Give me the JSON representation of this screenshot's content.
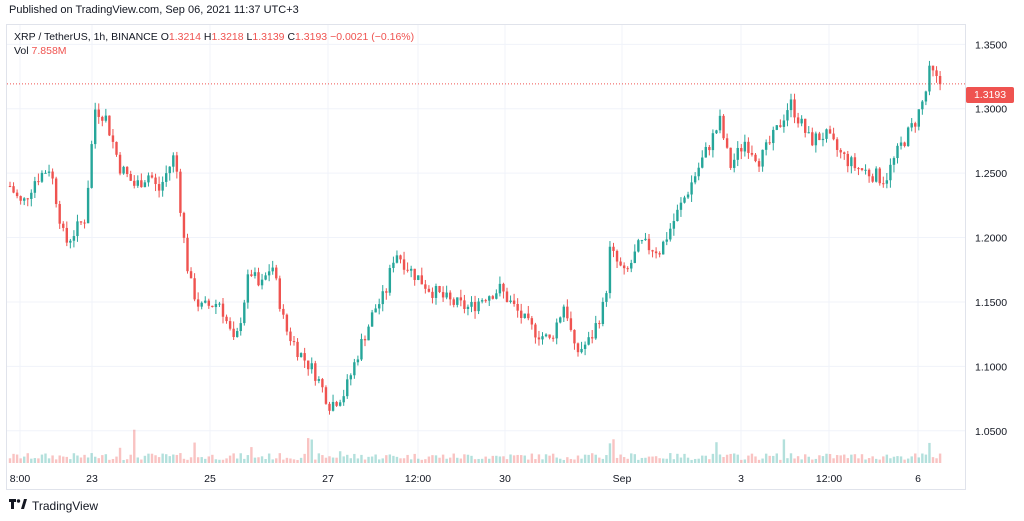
{
  "header": {
    "published": "Published on TradingView.com, Sep 06, 2021 11:37 UTC+3"
  },
  "legend": {
    "symbol": "XRP / TetherUS, 1h, BINANCE",
    "o_label": "O",
    "o_value": "1.3214",
    "h_label": "H",
    "h_value": "1.3218",
    "l_label": "L",
    "l_value": "1.3139",
    "c_label": "C",
    "c_value": "1.3193",
    "change": "−0.0021 (−0.16%)",
    "vol_label": "Vol",
    "vol_value": "7.858M"
  },
  "price_tag": "1.3193",
  "brand": {
    "name": "TradingView"
  },
  "colors": {
    "up": "#26a69a",
    "down": "#ef5350",
    "grid": "#f0f3fa"
  },
  "chart_data": {
    "type": "candlestick",
    "interval": "1h",
    "last_price": 1.3193,
    "ylim": [
      1.025,
      1.365
    ],
    "y_ticks": [
      "1.3500",
      "1.3000",
      "1.2500",
      "1.2000",
      "1.1500",
      "1.1000",
      "1.0500"
    ],
    "x_ticks": [
      "8:00",
      "23",
      "25",
      "27",
      "12:00",
      "30",
      "Sep",
      "3",
      "12:00",
      "6"
    ],
    "close_path": [
      [
        0,
        1.24
      ],
      [
        12,
        1.225
      ],
      [
        25,
        1.245
      ],
      [
        40,
        1.255
      ],
      [
        55,
        1.195
      ],
      [
        75,
        1.215
      ],
      [
        85,
        1.3
      ],
      [
        95,
        1.295
      ],
      [
        110,
        1.255
      ],
      [
        125,
        1.24
      ],
      [
        140,
        1.25
      ],
      [
        148,
        1.235
      ],
      [
        165,
        1.265
      ],
      [
        175,
        1.19
      ],
      [
        180,
        1.165
      ],
      [
        190,
        1.145
      ],
      [
        210,
        1.15
      ],
      [
        225,
        1.115
      ],
      [
        240,
        1.175
      ],
      [
        250,
        1.16
      ],
      [
        262,
        1.18
      ],
      [
        275,
        1.13
      ],
      [
        290,
        1.11
      ],
      [
        305,
        1.095
      ],
      [
        320,
        1.07
      ],
      [
        335,
        1.08
      ],
      [
        350,
        1.115
      ],
      [
        365,
        1.145
      ],
      [
        375,
        1.155
      ],
      [
        385,
        1.19
      ],
      [
        400,
        1.175
      ],
      [
        420,
        1.16
      ],
      [
        440,
        1.15
      ],
      [
        460,
        1.145
      ],
      [
        475,
        1.155
      ],
      [
        490,
        1.16
      ],
      [
        505,
        1.145
      ],
      [
        520,
        1.13
      ],
      [
        540,
        1.12
      ],
      [
        555,
        1.15
      ],
      [
        565,
        1.11
      ],
      [
        580,
        1.12
      ],
      [
        595,
        1.15
      ],
      [
        600,
        1.19
      ],
      [
        615,
        1.17
      ],
      [
        630,
        1.195
      ],
      [
        650,
        1.19
      ],
      [
        665,
        1.215
      ],
      [
        680,
        1.24
      ],
      [
        695,
        1.265
      ],
      [
        710,
        1.29
      ],
      [
        720,
        1.255
      ],
      [
        735,
        1.275
      ],
      [
        750,
        1.26
      ],
      [
        765,
        1.28
      ],
      [
        780,
        1.305
      ],
      [
        790,
        1.29
      ],
      [
        800,
        1.275
      ],
      [
        815,
        1.28
      ],
      [
        830,
        1.265
      ],
      [
        845,
        1.255
      ],
      [
        860,
        1.25
      ],
      [
        875,
        1.245
      ],
      [
        890,
        1.27
      ],
      [
        905,
        1.29
      ],
      [
        915,
        1.31
      ],
      [
        920,
        1.33
      ],
      [
        928,
        1.32
      ],
      [
        933,
        1.319
      ]
    ],
    "volume_spikes": [
      [
        110,
        3
      ],
      [
        125,
        3.5
      ],
      [
        185,
        2.5
      ],
      [
        240,
        2
      ],
      [
        300,
        2.5
      ],
      [
        330,
        2
      ],
      [
        600,
        5
      ],
      [
        605,
        4
      ],
      [
        705,
        2.2
      ],
      [
        775,
        3
      ],
      [
        920,
        2.5
      ]
    ]
  }
}
